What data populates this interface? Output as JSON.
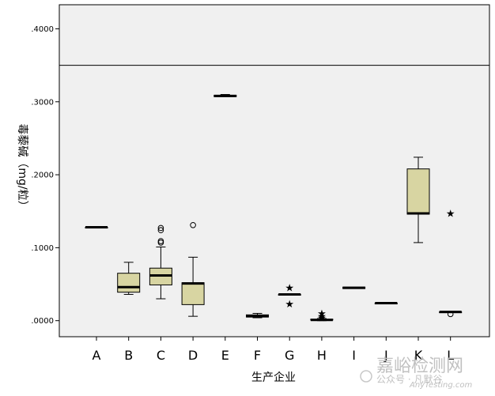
{
  "chart_data": {
    "type": "boxplot",
    "title": "",
    "xlabel": "生产企业",
    "ylabel": "毒藜碱（mg/粒）",
    "ylim": [
      -0.022,
      0.433
    ],
    "y_ticks": [
      ".0000",
      ".1000",
      ".2000",
      ".3000",
      ".4000"
    ],
    "y_tick_values": [
      0.0,
      0.1,
      0.2,
      0.3,
      0.4
    ],
    "reference_line": 0.35,
    "grid": false,
    "colors": {
      "plot_bg": "#f0f0f0",
      "box_fill": "#d8d5a2",
      "line": "#000000"
    },
    "categories": [
      "A",
      "B",
      "C",
      "D",
      "E",
      "F",
      "G",
      "H",
      "I",
      "J",
      "K",
      "L"
    ],
    "boxes": [
      {
        "category": "A",
        "min": 0.128,
        "q1": 0.128,
        "median": 0.128,
        "q3": 0.128,
        "max": 0.128,
        "outliers": [],
        "extremes": []
      },
      {
        "category": "B",
        "min": 0.036,
        "q1": 0.039,
        "median": 0.046,
        "q3": 0.065,
        "max": 0.08,
        "outliers": [],
        "extremes": []
      },
      {
        "category": "C",
        "min": 0.03,
        "q1": 0.049,
        "median": 0.062,
        "q3": 0.072,
        "max": 0.101,
        "outliers": [
          0.107,
          0.109,
          0.124,
          0.127
        ],
        "extremes": []
      },
      {
        "category": "D",
        "min": 0.006,
        "q1": 0.022,
        "median": 0.051,
        "q3": 0.052,
        "max": 0.087,
        "outliers": [
          0.131
        ],
        "extremes": []
      },
      {
        "category": "E",
        "min": 0.307,
        "q1": 0.307,
        "median": 0.308,
        "q3": 0.309,
        "max": 0.31,
        "outliers": [],
        "extremes": []
      },
      {
        "category": "F",
        "min": 0.004,
        "q1": 0.005,
        "median": 0.006,
        "q3": 0.008,
        "max": 0.01,
        "outliers": [],
        "extremes": []
      },
      {
        "category": "G",
        "min": 0.035,
        "q1": 0.035,
        "median": 0.036,
        "q3": 0.036,
        "max": 0.037,
        "outliers": [],
        "extremes": [
          0.045,
          0.023
        ]
      },
      {
        "category": "H",
        "min": 0.0,
        "q1": 0.001,
        "median": 0.001,
        "q3": 0.002,
        "max": 0.003,
        "outliers": [],
        "extremes": [
          0.01,
          0.006,
          0.004
        ]
      },
      {
        "category": "I",
        "min": 0.044,
        "q1": 0.044,
        "median": 0.045,
        "q3": 0.046,
        "max": 0.046,
        "outliers": [],
        "extremes": []
      },
      {
        "category": "J",
        "min": 0.024,
        "q1": 0.024,
        "median": 0.024,
        "q3": 0.024,
        "max": 0.024,
        "outliers": [],
        "extremes": []
      },
      {
        "category": "K",
        "min": 0.107,
        "q1": 0.146,
        "median": 0.147,
        "q3": 0.208,
        "max": 0.224,
        "outliers": [],
        "extremes": []
      },
      {
        "category": "L",
        "min": 0.012,
        "q1": 0.012,
        "median": 0.012,
        "q3": 0.012,
        "max": 0.012,
        "outliers": [
          0.009
        ],
        "extremes": [
          0.147
        ]
      }
    ]
  },
  "watermark": {
    "main": "嘉峪检测网",
    "sub": "AnyTesting.com",
    "account": "公众号 · 凡默谷"
  }
}
